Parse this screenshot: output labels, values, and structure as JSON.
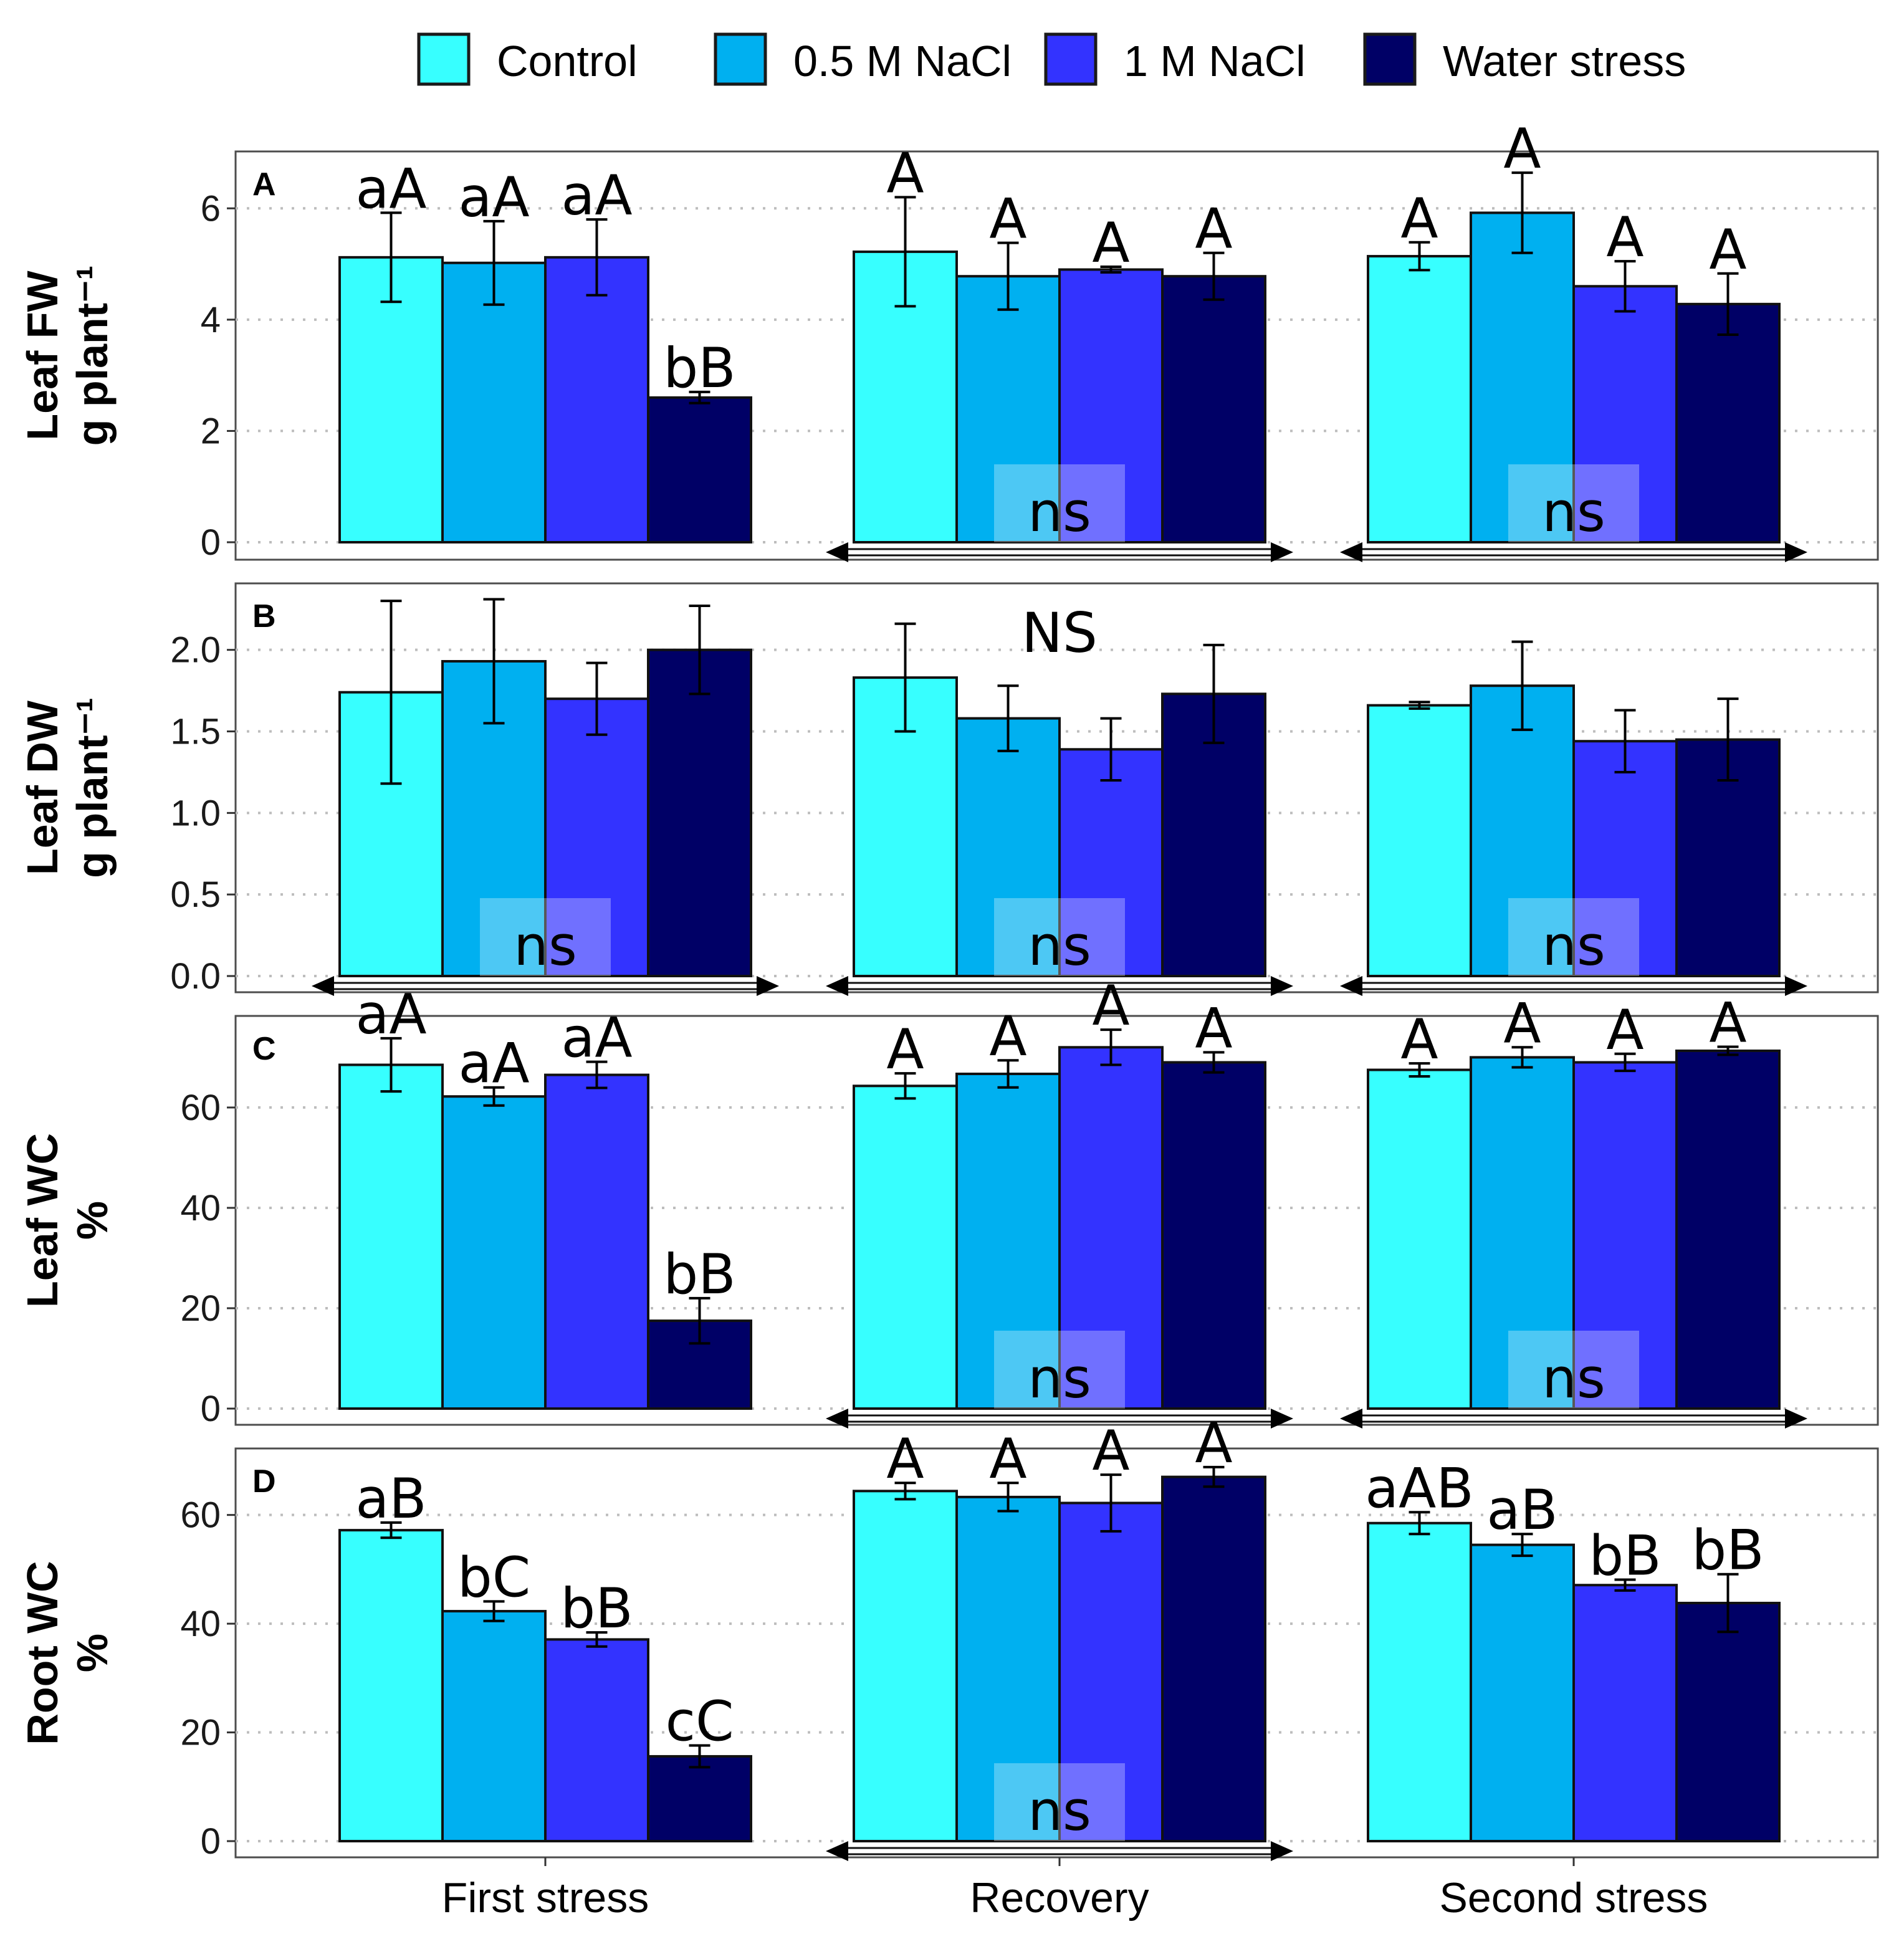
{
  "chart_data": {
    "type": "bar",
    "legend": {
      "position": "top",
      "entries": [
        {
          "label": "Control",
          "color": "#37ffff"
        },
        {
          "label": "0.5 M NaCl",
          "color": "#00b0f0"
        },
        {
          "label": "1 M NaCl",
          "color": "#3333ff"
        },
        {
          "label": "Water stress",
          "color": "#000066"
        }
      ]
    },
    "categories": [
      "First stress",
      "Recovery",
      "Second stress"
    ],
    "panels": [
      {
        "letter": "A",
        "ylabel_line1": "Leaf FW",
        "ylabel_line2": "g plant⁻¹",
        "ylim": [
          0,
          7.0
        ],
        "yticks": [
          0,
          2,
          4,
          6
        ],
        "ytick_labels": [
          "0",
          "2",
          "4",
          "6"
        ],
        "values": [
          [
            5.12,
            5.02,
            5.12,
            2.6
          ],
          [
            5.22,
            4.78,
            4.9,
            4.78
          ],
          [
            5.14,
            5.92,
            4.6,
            4.28
          ]
        ],
        "errors": [
          [
            0.8,
            0.75,
            0.68,
            0.1
          ],
          [
            0.98,
            0.6,
            0.05,
            0.42
          ],
          [
            0.25,
            0.72,
            0.45,
            0.55
          ]
        ],
        "letters": [
          [
            "aA",
            "aA",
            "aA",
            "bB"
          ],
          [
            "A",
            "A",
            "A",
            "A"
          ],
          [
            "A",
            "A",
            "A",
            "A"
          ]
        ],
        "ns": [
          "",
          "ns",
          "ns"
        ],
        "group_label": ""
      },
      {
        "letter": "B",
        "ylabel_line1": "Leaf DW",
        "ylabel_line2": "g plant⁻¹",
        "ylim": [
          0,
          2.4
        ],
        "yticks": [
          0,
          0.5,
          1.0,
          1.5,
          2.0
        ],
        "ytick_labels": [
          "0.0",
          "0.5",
          "1.0",
          "1.5",
          "2.0"
        ],
        "values": [
          [
            1.74,
            1.93,
            1.7,
            2.0
          ],
          [
            1.83,
            1.58,
            1.39,
            1.73
          ],
          [
            1.66,
            1.78,
            1.44,
            1.45
          ]
        ],
        "errors": [
          [
            0.56,
            0.38,
            0.22,
            0.27
          ],
          [
            0.33,
            0.2,
            0.19,
            0.3
          ],
          [
            0.02,
            0.27,
            0.19,
            0.25
          ]
        ],
        "letters": [
          [
            "",
            "",
            "",
            ""
          ],
          [
            "",
            "",
            "",
            ""
          ],
          [
            "",
            "",
            "",
            ""
          ]
        ],
        "ns": [
          "ns",
          "ns",
          "ns"
        ],
        "group_label": "NS"
      },
      {
        "letter": "C",
        "ylabel_line1": "Leaf WC",
        "ylabel_line2": "%",
        "ylim": [
          0,
          78
        ],
        "yticks": [
          0,
          20,
          40,
          60
        ],
        "ytick_labels": [
          "0",
          "20",
          "40",
          "60"
        ],
        "values": [
          [
            68.5,
            62.2,
            66.5,
            17.5
          ],
          [
            64.3,
            66.7,
            72.0,
            69.0
          ],
          [
            67.5,
            70.0,
            69.0,
            71.3
          ]
        ],
        "errors": [
          [
            5.3,
            1.8,
            2.6,
            4.5
          ],
          [
            2.5,
            2.7,
            3.5,
            2.0
          ],
          [
            1.3,
            2.0,
            1.7,
            0.8
          ]
        ],
        "letters": [
          [
            "aA",
            "aA",
            "aA",
            "bB"
          ],
          [
            "A",
            "A",
            "A",
            "A"
          ],
          [
            "A",
            "A",
            "A",
            "A"
          ]
        ],
        "ns": [
          "",
          "ns",
          "ns"
        ],
        "group_label": ""
      },
      {
        "letter": "D",
        "ylabel_line1": "Root WC",
        "ylabel_line2": "%",
        "ylim": [
          0,
          72
        ],
        "yticks": [
          0,
          20,
          40,
          60
        ],
        "ytick_labels": [
          "0",
          "20",
          "40",
          "60"
        ],
        "values": [
          [
            57.2,
            42.3,
            37.1,
            15.6
          ],
          [
            64.4,
            63.3,
            62.2,
            67.0
          ],
          [
            58.5,
            54.5,
            47.1,
            43.8
          ]
        ],
        "errors": [
          [
            1.4,
            1.8,
            1.3,
            2.0
          ],
          [
            1.5,
            2.6,
            5.2,
            1.8
          ],
          [
            2.0,
            2.0,
            1.0,
            5.3
          ]
        ],
        "letters": [
          [
            "aB",
            "bC",
            "bB",
            "cC"
          ],
          [
            "A",
            "A",
            "A",
            "A"
          ],
          [
            "aAB",
            "aB",
            "bB",
            "bB"
          ]
        ],
        "ns": [
          "",
          "ns",
          ""
        ],
        "group_label": ""
      }
    ]
  }
}
